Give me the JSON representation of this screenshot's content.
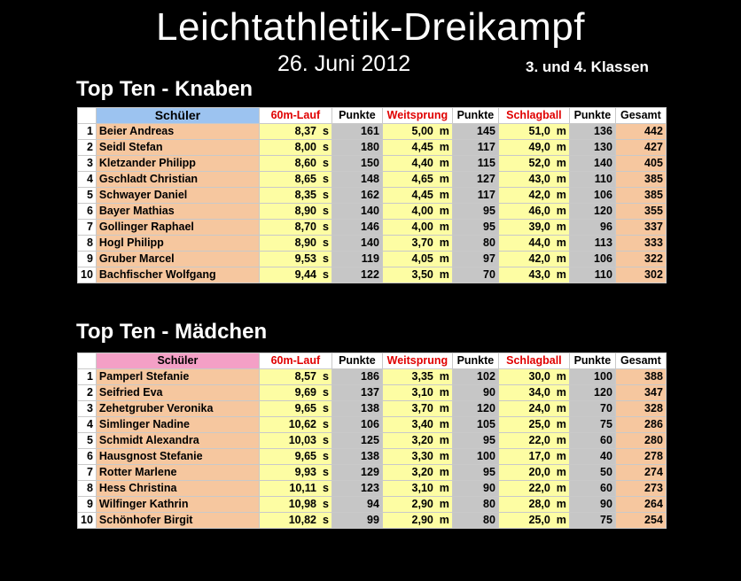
{
  "title": "Leichtathletik-Dreikampf",
  "date": "26. Juni 2012",
  "classes": "3. und 4. Klassen",
  "columns": {
    "student": "Schüler",
    "run": "60m-Lauf",
    "points1": "Punkte",
    "jump": "Weitsprung",
    "points2": "Punkte",
    "throw": "Schlagball",
    "points3": "Punkte",
    "total": "Gesamt"
  },
  "boys": {
    "heading": "Top Ten - Knaben",
    "rows": [
      {
        "rank": "1",
        "name": "Beier Andreas",
        "run": "8,37  s",
        "p1": "161",
        "jump": "5,00  m",
        "p2": "145",
        "throw": "51,0  m",
        "p3": "136",
        "total": "442"
      },
      {
        "rank": "2",
        "name": "Seidl Stefan",
        "run": "8,00  s",
        "p1": "180",
        "jump": "4,45  m",
        "p2": "117",
        "throw": "49,0  m",
        "p3": "130",
        "total": "427"
      },
      {
        "rank": "3",
        "name": "Kletzander Philipp",
        "run": "8,60  s",
        "p1": "150",
        "jump": "4,40  m",
        "p2": "115",
        "throw": "52,0  m",
        "p3": "140",
        "total": "405"
      },
      {
        "rank": "4",
        "name": "Gschladt Christian",
        "run": "8,65  s",
        "p1": "148",
        "jump": "4,65  m",
        "p2": "127",
        "throw": "43,0  m",
        "p3": "110",
        "total": "385"
      },
      {
        "rank": "5",
        "name": "Schwayer Daniel",
        "run": "8,35  s",
        "p1": "162",
        "jump": "4,45  m",
        "p2": "117",
        "throw": "42,0  m",
        "p3": "106",
        "total": "385"
      },
      {
        "rank": "6",
        "name": "Bayer Mathias",
        "run": "8,90  s",
        "p1": "140",
        "jump": "4,00  m",
        "p2": "95",
        "throw": "46,0  m",
        "p3": "120",
        "total": "355"
      },
      {
        "rank": "7",
        "name": "Gollinger Raphael",
        "run": "8,70  s",
        "p1": "146",
        "jump": "4,00  m",
        "p2": "95",
        "throw": "39,0  m",
        "p3": "96",
        "total": "337"
      },
      {
        "rank": "8",
        "name": "Hogl Philipp",
        "run": "8,90  s",
        "p1": "140",
        "jump": "3,70  m",
        "p2": "80",
        "throw": "44,0  m",
        "p3": "113",
        "total": "333"
      },
      {
        "rank": "9",
        "name": "Gruber Marcel",
        "run": "9,53  s",
        "p1": "119",
        "jump": "4,05  m",
        "p2": "97",
        "throw": "42,0  m",
        "p3": "106",
        "total": "322"
      },
      {
        "rank": "10",
        "name": "Bachfischer Wolfgang",
        "run": "9,44  s",
        "p1": "122",
        "jump": "3,50  m",
        "p2": "70",
        "throw": "43,0  m",
        "p3": "110",
        "total": "302"
      }
    ]
  },
  "girls": {
    "heading": "Top Ten - Mädchen",
    "rows": [
      {
        "rank": "1",
        "name": "Pamperl Stefanie",
        "run": "8,57  s",
        "p1": "186",
        "jump": "3,35  m",
        "p2": "102",
        "throw": "30,0  m",
        "p3": "100",
        "total": "388"
      },
      {
        "rank": "2",
        "name": "Seifried Eva",
        "run": "9,69  s",
        "p1": "137",
        "jump": "3,10  m",
        "p2": "90",
        "throw": "34,0  m",
        "p3": "120",
        "total": "347"
      },
      {
        "rank": "3",
        "name": "Zehetgruber Veronika",
        "run": "9,65  s",
        "p1": "138",
        "jump": "3,70  m",
        "p2": "120",
        "throw": "24,0  m",
        "p3": "70",
        "total": "328"
      },
      {
        "rank": "4",
        "name": "Simlinger Nadine",
        "run": "10,62  s",
        "p1": "106",
        "jump": "3,40  m",
        "p2": "105",
        "throw": "25,0  m",
        "p3": "75",
        "total": "286"
      },
      {
        "rank": "5",
        "name": "Schmidt Alexandra",
        "run": "10,03  s",
        "p1": "125",
        "jump": "3,20  m",
        "p2": "95",
        "throw": "22,0  m",
        "p3": "60",
        "total": "280"
      },
      {
        "rank": "6",
        "name": "Hausgnost Stefanie",
        "run": "9,65  s",
        "p1": "138",
        "jump": "3,30  m",
        "p2": "100",
        "throw": "17,0  m",
        "p3": "40",
        "total": "278"
      },
      {
        "rank": "7",
        "name": "Rotter Marlene",
        "run": "9,93  s",
        "p1": "129",
        "jump": "3,20  m",
        "p2": "95",
        "throw": "20,0  m",
        "p3": "50",
        "total": "274"
      },
      {
        "rank": "8",
        "name": "Hess Christina",
        "run": "10,11  s",
        "p1": "123",
        "jump": "3,10  m",
        "p2": "90",
        "throw": "22,0  m",
        "p3": "60",
        "total": "273"
      },
      {
        "rank": "9",
        "name": "Wilfinger Kathrin",
        "run": "10,98  s",
        "p1": "94",
        "jump": "2,90  m",
        "p2": "80",
        "throw": "28,0  m",
        "p3": "90",
        "total": "264"
      },
      {
        "rank": "10",
        "name": "Schönhofer Birgit",
        "run": "10,82  s",
        "p1": "99",
        "jump": "2,90  m",
        "p2": "80",
        "throw": "25,0  m",
        "p3": "75",
        "total": "254"
      }
    ]
  }
}
